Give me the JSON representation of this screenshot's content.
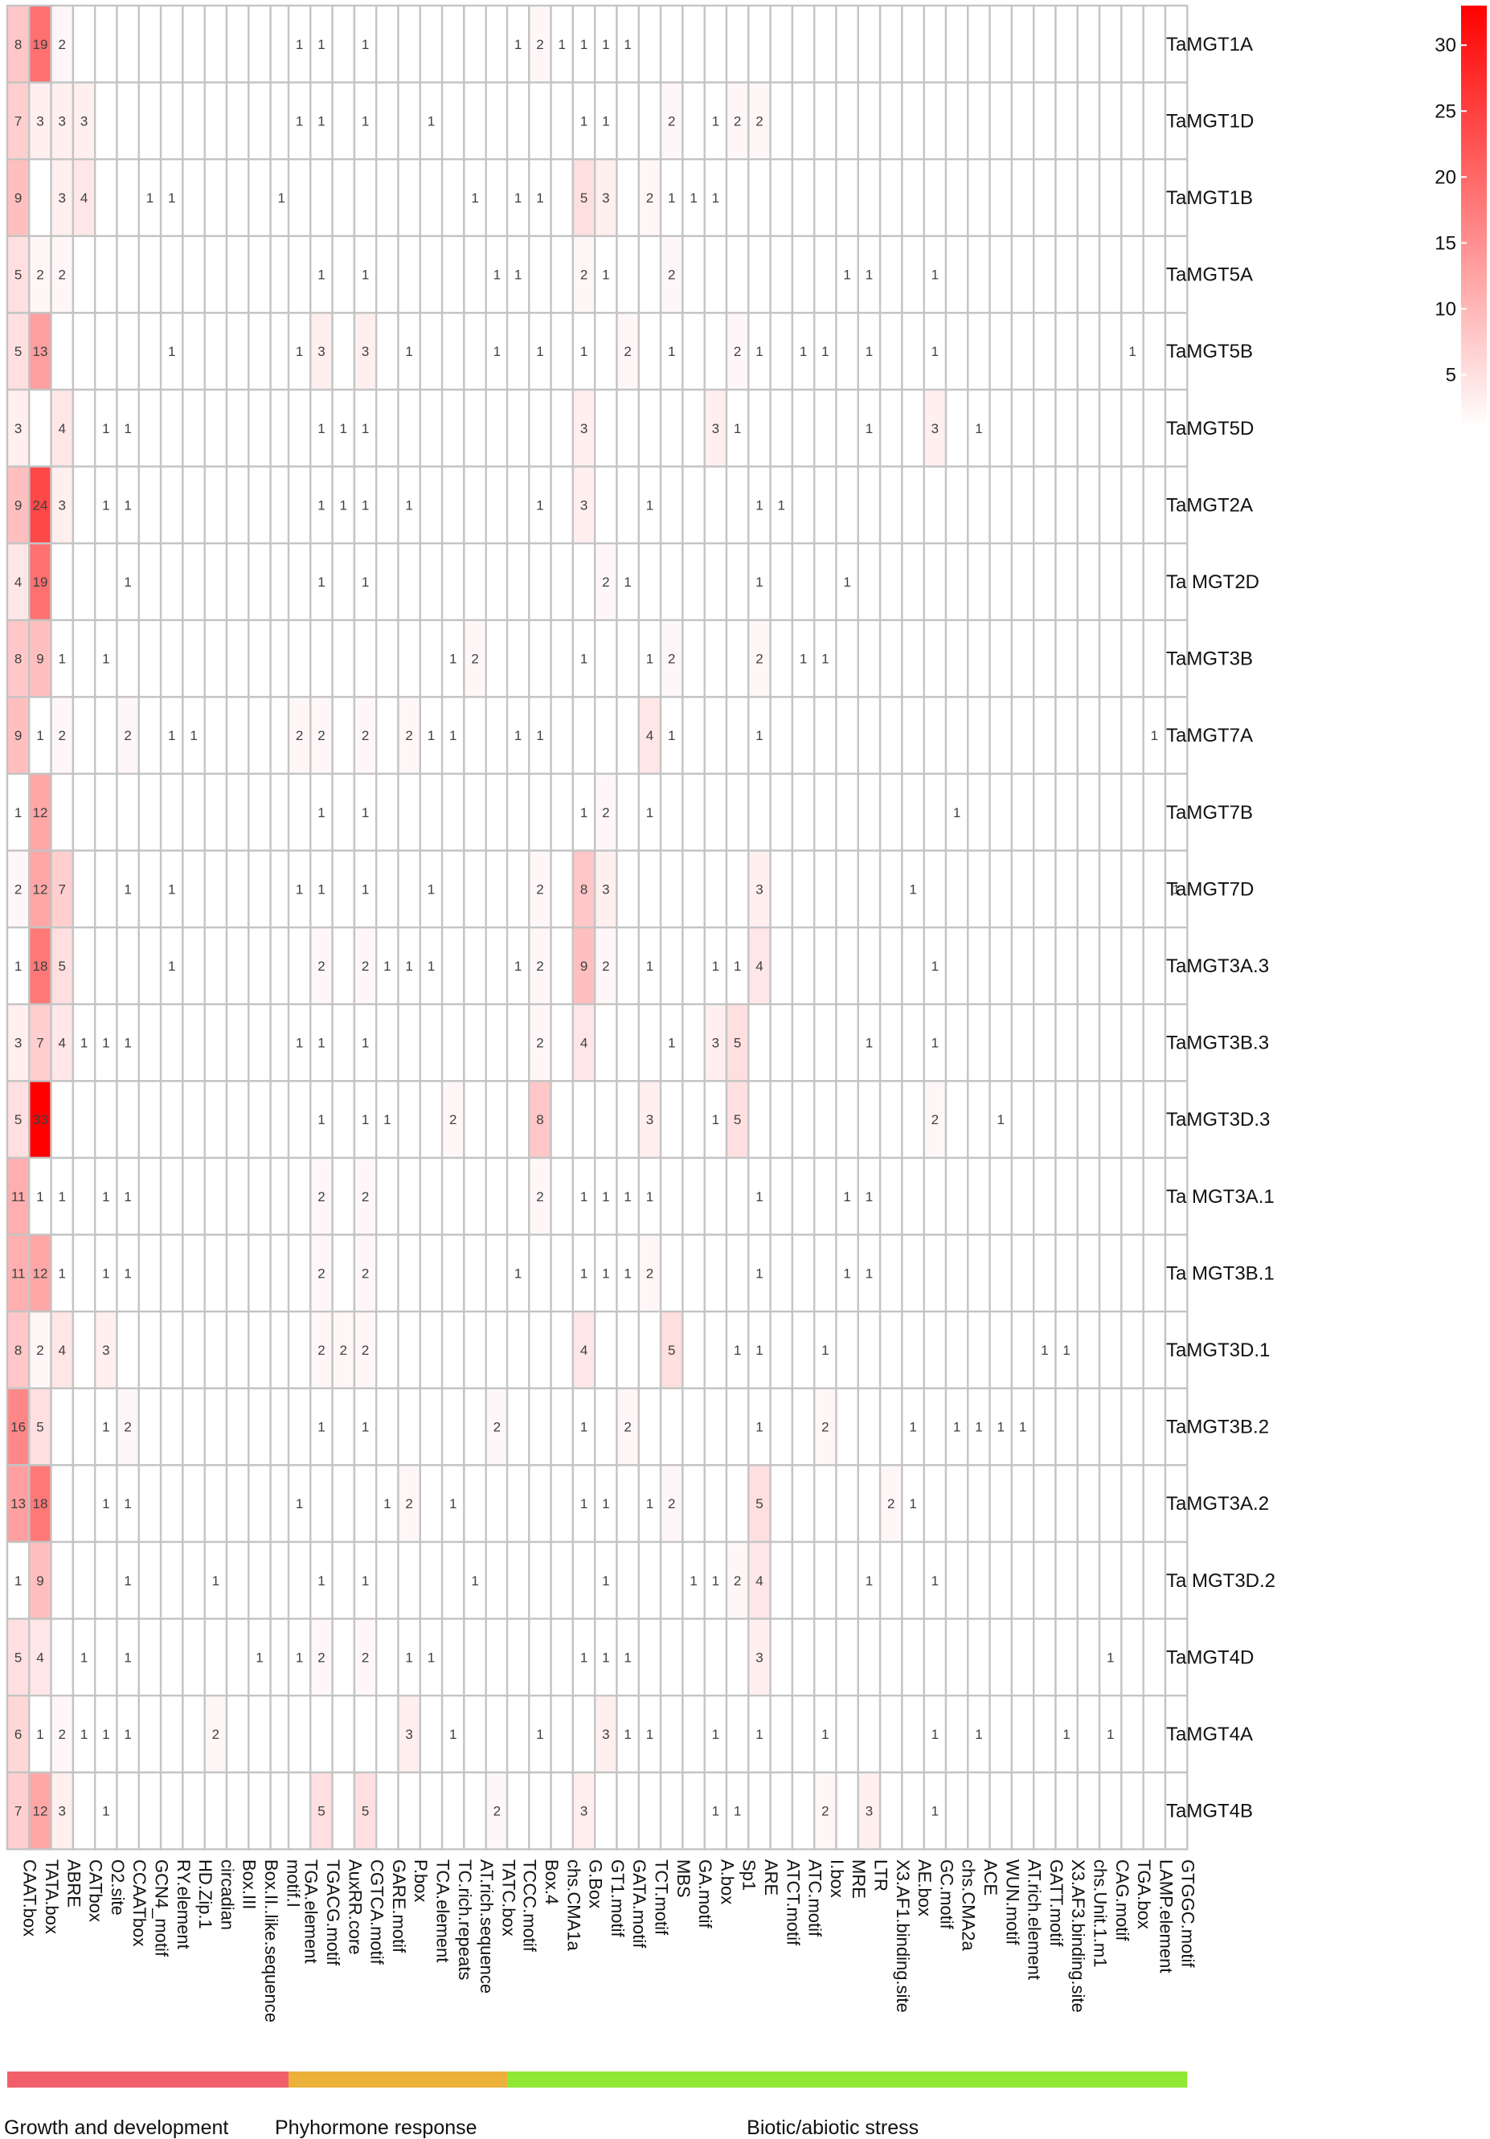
{
  "chart_data": {
    "type": "heatmap",
    "title": "",
    "xlabel": "",
    "ylabel": "",
    "rows": [
      "TaMGT1A",
      "TaMGT1D",
      "TaMGT1B",
      "TaMGT5A",
      "TaMGT5B",
      "TaMGT5D",
      "TaMGT2A",
      "Ta MGT2D",
      "TaMGT3B",
      "TaMGT7A",
      "TaMGT7B",
      "TaMGT7D",
      "TaMGT3A.3",
      "TaMGT3B.3",
      "TaMGT3D.3",
      "Ta MGT3A.1",
      "Ta MGT3B.1",
      "TaMGT3D.1",
      "TaMGT3B.2",
      "TaMGT3A.2",
      "Ta MGT3D.2",
      "TaMGT4D",
      "TaMGT4A",
      "TaMGT4B"
    ],
    "groups": [
      {
        "name": "Growth and development",
        "color": "#f0606a",
        "columns": [
          "CAAT.box",
          "TATA.box",
          "ABRE",
          "CATbox",
          "O2.site",
          "CCAATbox",
          "GCN4_motif",
          "RY.element",
          "HD.Zip.1",
          "circadian",
          "Box.III",
          "Box.II..like.sequence",
          "motif.I"
        ]
      },
      {
        "name": "Phyhormone response",
        "color": "#ecb13a",
        "columns": [
          "TGA.element",
          "TGACG.motif",
          "AuxRR.core",
          "CGTCA.motif",
          "GARE.motif",
          "P.box",
          "TCA.element",
          "TC.rich.repeats",
          "AT.rich.sequence",
          "TATC.box"
        ]
      },
      {
        "name": "Biotic/abiotic stress",
        "color": "#8fe835",
        "columns": [
          "TCCC.motif",
          "Box.4",
          "chs.CMA1a",
          "G.Box",
          "GT1.motif",
          "GATA.motif",
          "TCT.motif",
          "MBS",
          "GA.motif",
          "A.box",
          "Sp1",
          "ARE",
          "ATCT.motif",
          "ATC.motif",
          "I.box",
          "MRE",
          "LTR",
          "X3.AF1.binding.site",
          "AE.box",
          "GC.motif",
          "chs.CMA2a",
          "ACE",
          "WUN.motif",
          "AT.rich.element",
          "GATT.motif",
          "X3.AF3.binding.site",
          "chs.Unit.1.m1",
          "CAG.motif",
          "TGA.box",
          "LAMP.element",
          "GTGGC.motif"
        ]
      }
    ],
    "values": [
      [
        8,
        19,
        2,
        null,
        null,
        null,
        null,
        null,
        null,
        null,
        null,
        null,
        null,
        1,
        1,
        null,
        1,
        null,
        null,
        null,
        null,
        null,
        null,
        1,
        2,
        1,
        1,
        1,
        1,
        null,
        null,
        null,
        null,
        null,
        null,
        null,
        null,
        null,
        null,
        null,
        null,
        null,
        null,
        null,
        null,
        null,
        null,
        null,
        null,
        null,
        null,
        null,
        null,
        null
      ],
      [
        7,
        3,
        3,
        3,
        null,
        null,
        null,
        null,
        null,
        null,
        null,
        null,
        null,
        1,
        1,
        null,
        1,
        null,
        null,
        1,
        null,
        null,
        null,
        null,
        null,
        null,
        1,
        1,
        null,
        null,
        2,
        null,
        1,
        2,
        2,
        null,
        null,
        null,
        null,
        null,
        null,
        null,
        null,
        null,
        null,
        null,
        null,
        null,
        null,
        null,
        null,
        null,
        null,
        null
      ],
      [
        9,
        null,
        3,
        4,
        null,
        null,
        1,
        1,
        null,
        null,
        null,
        null,
        1,
        null,
        null,
        null,
        null,
        null,
        null,
        null,
        null,
        1,
        null,
        1,
        1,
        null,
        5,
        3,
        null,
        2,
        1,
        1,
        1,
        null,
        null,
        null,
        null,
        null,
        null,
        null,
        null,
        null,
        null,
        null,
        null,
        null,
        null,
        null,
        null,
        null,
        null,
        null,
        null,
        null
      ],
      [
        5,
        2,
        2,
        null,
        null,
        null,
        null,
        null,
        null,
        null,
        null,
        null,
        null,
        null,
        1,
        null,
        1,
        null,
        null,
        null,
        null,
        null,
        1,
        1,
        null,
        null,
        2,
        1,
        null,
        null,
        2,
        null,
        null,
        null,
        null,
        null,
        null,
        null,
        1,
        1,
        null,
        null,
        1,
        null,
        null,
        null,
        null,
        null,
        null,
        null,
        null,
        null,
        null,
        null
      ],
      [
        5,
        13,
        null,
        null,
        null,
        null,
        null,
        1,
        null,
        null,
        null,
        null,
        null,
        1,
        3,
        null,
        3,
        null,
        1,
        null,
        null,
        null,
        1,
        null,
        1,
        null,
        1,
        null,
        2,
        null,
        1,
        null,
        null,
        2,
        1,
        null,
        1,
        1,
        null,
        1,
        null,
        null,
        1,
        null,
        null,
        null,
        null,
        null,
        null,
        null,
        null,
        1,
        null,
        null
      ],
      [
        3,
        null,
        4,
        null,
        1,
        1,
        null,
        null,
        null,
        null,
        null,
        null,
        null,
        null,
        1,
        1,
        1,
        null,
        null,
        null,
        null,
        null,
        null,
        null,
        null,
        null,
        3,
        null,
        null,
        null,
        null,
        null,
        3,
        1,
        null,
        null,
        null,
        null,
        null,
        1,
        null,
        null,
        3,
        null,
        1,
        null,
        null,
        null,
        null,
        null,
        null,
        null,
        null,
        null
      ],
      [
        9,
        24,
        3,
        null,
        1,
        1,
        null,
        null,
        null,
        null,
        null,
        null,
        null,
        null,
        1,
        1,
        1,
        null,
        1,
        null,
        null,
        null,
        null,
        null,
        1,
        null,
        3,
        null,
        null,
        1,
        null,
        null,
        null,
        null,
        1,
        1,
        null,
        null,
        null,
        null,
        null,
        null,
        null,
        null,
        null,
        null,
        null,
        null,
        null,
        null,
        null,
        null,
        null,
        null
      ],
      [
        4,
        19,
        null,
        null,
        null,
        1,
        null,
        null,
        null,
        null,
        null,
        null,
        null,
        null,
        1,
        null,
        1,
        null,
        null,
        null,
        null,
        null,
        null,
        null,
        null,
        null,
        null,
        2,
        1,
        null,
        null,
        null,
        null,
        null,
        1,
        null,
        null,
        null,
        1,
        null,
        null,
        null,
        null,
        null,
        null,
        null,
        null,
        null,
        null,
        null,
        null,
        null,
        null,
        null
      ],
      [
        8,
        9,
        1,
        null,
        1,
        null,
        null,
        null,
        null,
        null,
        null,
        null,
        null,
        null,
        null,
        null,
        null,
        null,
        null,
        null,
        1,
        2,
        null,
        null,
        null,
        null,
        1,
        null,
        null,
        1,
        2,
        null,
        null,
        null,
        2,
        null,
        1,
        1,
        null,
        null,
        null,
        null,
        null,
        null,
        null,
        null,
        null,
        null,
        null,
        null,
        null,
        null,
        null,
        null
      ],
      [
        9,
        1,
        2,
        null,
        null,
        2,
        null,
        1,
        1,
        null,
        null,
        null,
        null,
        2,
        2,
        null,
        2,
        null,
        2,
        1,
        1,
        null,
        null,
        1,
        1,
        null,
        null,
        null,
        null,
        4,
        1,
        null,
        null,
        null,
        1,
        null,
        null,
        null,
        null,
        null,
        null,
        null,
        null,
        null,
        null,
        null,
        null,
        null,
        null,
        null,
        null,
        null,
        1,
        null
      ],
      [
        1,
        12,
        null,
        null,
        null,
        null,
        null,
        null,
        null,
        null,
        null,
        null,
        null,
        null,
        1,
        null,
        1,
        null,
        null,
        null,
        null,
        null,
        null,
        null,
        null,
        null,
        1,
        2,
        null,
        1,
        null,
        null,
        null,
        null,
        null,
        null,
        null,
        null,
        null,
        null,
        null,
        null,
        null,
        1,
        null,
        null,
        null,
        null,
        null,
        null,
        null,
        null,
        null,
        null
      ],
      [
        2,
        12,
        7,
        null,
        null,
        1,
        null,
        1,
        null,
        null,
        null,
        null,
        null,
        1,
        1,
        null,
        1,
        null,
        null,
        1,
        null,
        null,
        null,
        null,
        2,
        null,
        8,
        3,
        null,
        null,
        null,
        null,
        null,
        null,
        3,
        null,
        null,
        null,
        null,
        null,
        null,
        1,
        null,
        null,
        null,
        null,
        null,
        null,
        null,
        null,
        null,
        null,
        null,
        1
      ],
      [
        1,
        18,
        5,
        null,
        null,
        null,
        null,
        1,
        null,
        null,
        null,
        null,
        null,
        null,
        2,
        null,
        2,
        1,
        1,
        1,
        null,
        null,
        null,
        1,
        2,
        null,
        9,
        2,
        null,
        1,
        null,
        null,
        1,
        1,
        4,
        null,
        null,
        null,
        null,
        null,
        null,
        null,
        1,
        null,
        null,
        null,
        null,
        null,
        null,
        null,
        null,
        null,
        null,
        null
      ],
      [
        3,
        7,
        4,
        1,
        1,
        1,
        null,
        null,
        null,
        null,
        null,
        null,
        null,
        1,
        1,
        null,
        1,
        null,
        null,
        null,
        null,
        null,
        null,
        null,
        2,
        null,
        4,
        null,
        null,
        null,
        1,
        null,
        3,
        5,
        null,
        null,
        null,
        null,
        null,
        1,
        null,
        null,
        1,
        null,
        null,
        null,
        null,
        null,
        null,
        null,
        null,
        null,
        null,
        null
      ],
      [
        5,
        33,
        null,
        null,
        null,
        null,
        null,
        null,
        null,
        null,
        null,
        null,
        null,
        null,
        1,
        null,
        1,
        1,
        null,
        null,
        2,
        null,
        null,
        null,
        8,
        null,
        null,
        null,
        null,
        3,
        null,
        null,
        1,
        5,
        null,
        null,
        null,
        null,
        null,
        null,
        null,
        null,
        2,
        null,
        null,
        1,
        null,
        null,
        null,
        null,
        null,
        null,
        null,
        null
      ],
      [
        11,
        1,
        1,
        null,
        1,
        1,
        null,
        null,
        null,
        null,
        null,
        null,
        null,
        null,
        2,
        null,
        2,
        null,
        null,
        null,
        null,
        null,
        null,
        null,
        2,
        null,
        1,
        1,
        1,
        1,
        null,
        null,
        null,
        null,
        1,
        null,
        null,
        null,
        1,
        1,
        null,
        null,
        null,
        null,
        null,
        null,
        null,
        null,
        null,
        null,
        null,
        null,
        null,
        null
      ],
      [
        11,
        12,
        1,
        null,
        1,
        1,
        null,
        null,
        null,
        null,
        null,
        null,
        null,
        null,
        2,
        null,
        2,
        null,
        null,
        null,
        null,
        null,
        null,
        1,
        null,
        null,
        1,
        1,
        1,
        2,
        null,
        null,
        null,
        null,
        1,
        null,
        null,
        null,
        1,
        1,
        null,
        null,
        null,
        null,
        null,
        null,
        null,
        null,
        null,
        null,
        null,
        null,
        null,
        null
      ],
      [
        8,
        2,
        4,
        null,
        3,
        null,
        null,
        null,
        null,
        null,
        null,
        null,
        null,
        null,
        2,
        2,
        2,
        null,
        null,
        null,
        null,
        null,
        null,
        null,
        null,
        null,
        4,
        null,
        null,
        null,
        5,
        null,
        null,
        1,
        1,
        null,
        null,
        1,
        null,
        null,
        null,
        null,
        null,
        null,
        null,
        null,
        null,
        1,
        1,
        null,
        null,
        null,
        null,
        null
      ],
      [
        16,
        5,
        null,
        null,
        1,
        2,
        null,
        null,
        null,
        null,
        null,
        null,
        null,
        null,
        1,
        null,
        1,
        null,
        null,
        null,
        null,
        null,
        2,
        null,
        null,
        null,
        1,
        null,
        2,
        null,
        null,
        null,
        null,
        null,
        1,
        null,
        null,
        2,
        null,
        null,
        null,
        1,
        null,
        1,
        1,
        1,
        1,
        null,
        null,
        null,
        null,
        null,
        null,
        null
      ],
      [
        13,
        18,
        null,
        null,
        1,
        1,
        null,
        null,
        null,
        null,
        null,
        null,
        null,
        1,
        null,
        null,
        null,
        1,
        2,
        null,
        1,
        null,
        null,
        null,
        null,
        null,
        1,
        1,
        null,
        1,
        2,
        null,
        null,
        null,
        5,
        null,
        null,
        null,
        null,
        null,
        2,
        1,
        null,
        null,
        null,
        null,
        null,
        null,
        null,
        null,
        null,
        null,
        null,
        null
      ],
      [
        1,
        9,
        null,
        null,
        null,
        1,
        null,
        null,
        null,
        1,
        null,
        null,
        null,
        null,
        1,
        null,
        1,
        null,
        null,
        null,
        null,
        1,
        null,
        null,
        null,
        null,
        null,
        1,
        null,
        null,
        null,
        1,
        1,
        2,
        4,
        null,
        null,
        null,
        null,
        1,
        null,
        null,
        1,
        null,
        null,
        null,
        null,
        null,
        null,
        null,
        null,
        null,
        null,
        null
      ],
      [
        5,
        4,
        null,
        1,
        null,
        1,
        null,
        null,
        null,
        null,
        null,
        1,
        null,
        1,
        2,
        null,
        2,
        null,
        1,
        1,
        null,
        null,
        null,
        null,
        null,
        null,
        1,
        1,
        1,
        null,
        null,
        null,
        null,
        null,
        3,
        null,
        null,
        null,
        null,
        null,
        null,
        null,
        null,
        null,
        null,
        null,
        null,
        null,
        null,
        null,
        1,
        null,
        null,
        null
      ],
      [
        6,
        1,
        2,
        1,
        1,
        1,
        null,
        null,
        null,
        2,
        null,
        null,
        null,
        null,
        null,
        null,
        null,
        null,
        3,
        null,
        1,
        null,
        null,
        null,
        1,
        null,
        null,
        3,
        1,
        1,
        null,
        null,
        1,
        null,
        1,
        null,
        null,
        1,
        null,
        null,
        null,
        null,
        1,
        null,
        1,
        null,
        null,
        null,
        1,
        null,
        1,
        null,
        null,
        null
      ],
      [
        7,
        12,
        3,
        null,
        1,
        null,
        null,
        null,
        null,
        null,
        null,
        null,
        null,
        null,
        5,
        null,
        5,
        null,
        null,
        null,
        null,
        null,
        2,
        null,
        null,
        null,
        3,
        null,
        null,
        null,
        null,
        null,
        1,
        1,
        null,
        null,
        null,
        2,
        null,
        3,
        null,
        null,
        1,
        null,
        null,
        null,
        null,
        null,
        null,
        null,
        null,
        null,
        null,
        null
      ]
    ],
    "color_scale": {
      "min_color": "#ffffff",
      "max_color": "#ff0000",
      "range": [
        1,
        33
      ],
      "ticks": [
        5,
        10,
        15,
        20,
        25,
        30
      ]
    },
    "legend_position": "top-right"
  }
}
